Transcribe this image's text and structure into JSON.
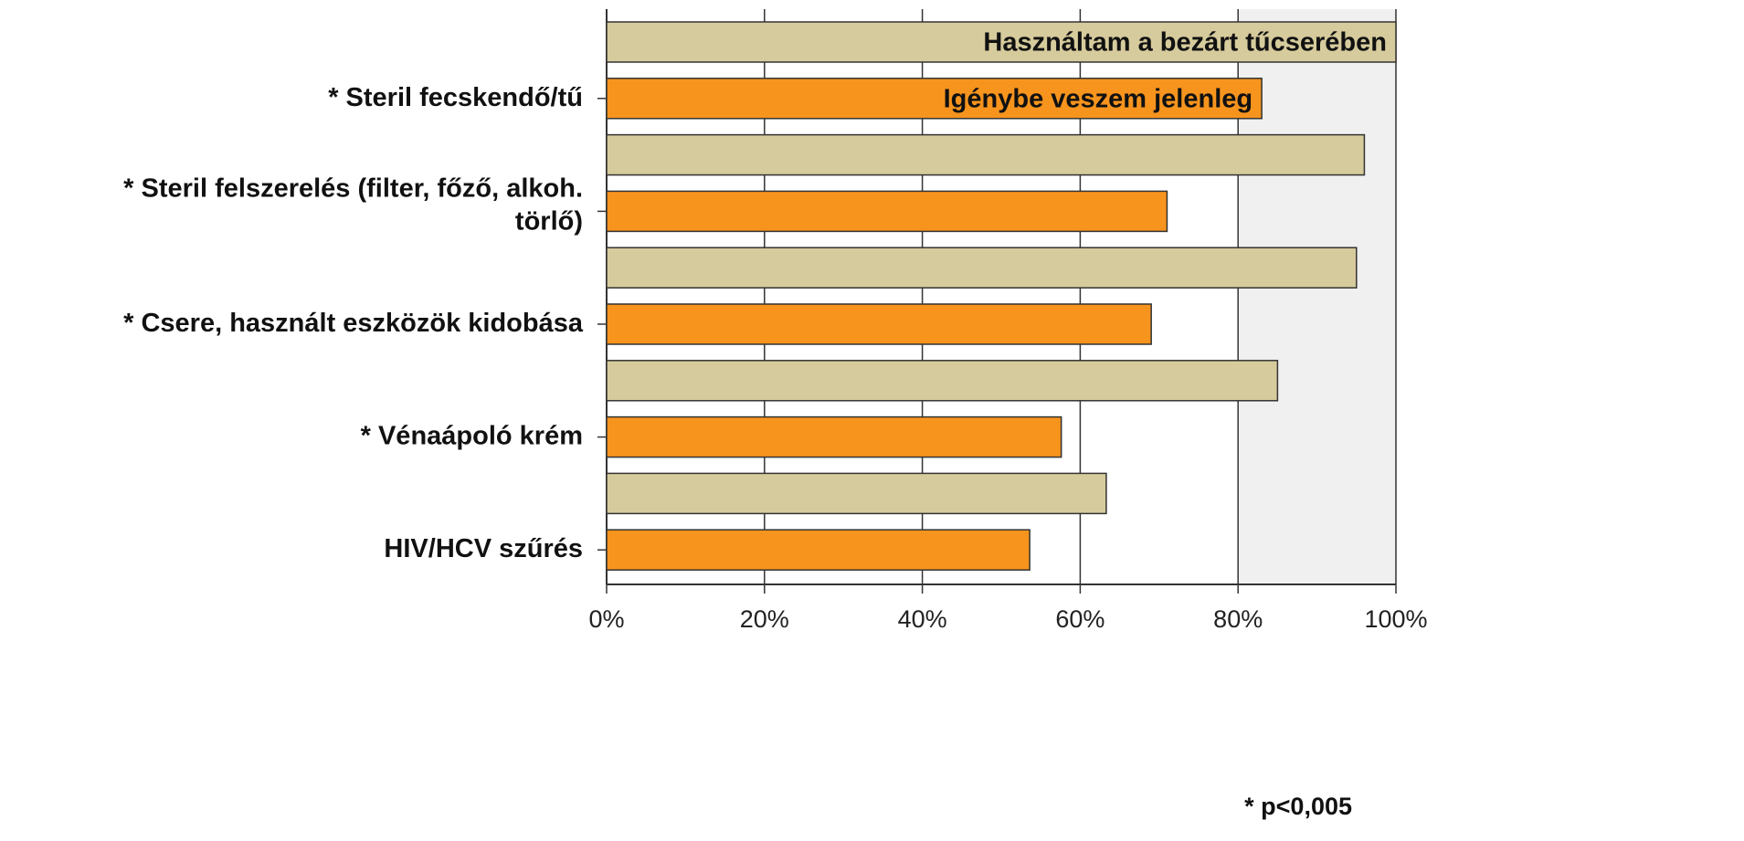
{
  "chart_data": {
    "type": "bar",
    "orientation": "horizontal",
    "categories": [
      "* Steril fecskendő/tű",
      "* Steril felszerelés (filter, főző, alkoh.\ntörlő)",
      "* Csere, használt eszközök kidobása",
      "* Vénaápoló krém",
      "HIV/HCV szűrés"
    ],
    "series": [
      {
        "name": "Használtam a bezárt tűcserében",
        "color": "#d6cb9c",
        "values": [
          100,
          96,
          95,
          85,
          63.3
        ]
      },
      {
        "name": "Igénybe veszem jelenleg",
        "color": "#f7941e",
        "values": [
          83,
          71,
          69,
          57.6,
          53.6
        ]
      }
    ],
    "xlim": [
      0,
      100
    ],
    "xticks": [
      {
        "value": 0,
        "label": "0%"
      },
      {
        "value": 20,
        "label": "20%"
      },
      {
        "value": 40,
        "label": "40%"
      },
      {
        "value": 60,
        "label": "60%"
      },
      {
        "value": 80,
        "label": "80%"
      },
      {
        "value": 100,
        "label": "100%"
      }
    ],
    "grid": true,
    "annotation": "* p<0,005"
  }
}
